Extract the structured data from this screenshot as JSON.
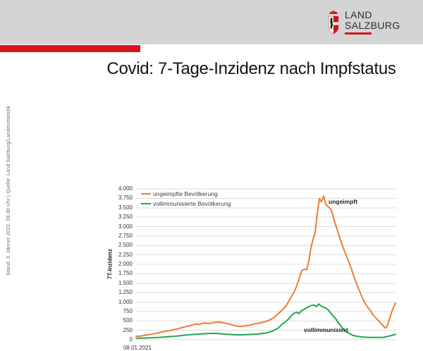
{
  "header": {
    "band_color": "#d4d4d4",
    "accent_bar_color": "#d8121a",
    "logo": {
      "line1": "LAND",
      "line2": "SALZBURG"
    }
  },
  "source_caption": "Stand: 3. Jänner 2022, 08.30 Uhr  |  Quelle: Land Salzburg/Landesstatistik",
  "page_title": "Covid: 7-Tage-Inzidenz nach Impfstatus",
  "chart_data": {
    "type": "line",
    "title": "Covid: 7-Tage-Inzidenz nach Impfstatus",
    "xlabel": "",
    "ylabel": "7T-Inzidenz",
    "x_start_label": "08.01.2021",
    "ylim": [
      0,
      4000
    ],
    "ytick_step": 250,
    "ytick_labels_bottom_up": [
      "0",
      "250",
      "500",
      "750",
      "1.000",
      "1.250",
      "1.500",
      "1.750",
      "2.000",
      "2.250",
      "2.500",
      "2.750",
      "3.000",
      "3.250",
      "3.500",
      "3.750",
      "4.000"
    ],
    "grid": true,
    "gridline_color": "#dcdcdc",
    "legend_position": "top-left",
    "annotations": [
      {
        "text": "ungeimpft"
      },
      {
        "text": "vollimmunisiert"
      }
    ],
    "series": [
      {
        "name": "ungeimpfte Bevölkerung",
        "color": "#ED7D31",
        "points": [
          [
            0,
            90
          ],
          [
            0.019,
            100
          ],
          [
            0.046,
            130
          ],
          [
            0.073,
            165
          ],
          [
            0.1,
            205
          ],
          [
            0.127,
            240
          ],
          [
            0.154,
            280
          ],
          [
            0.176,
            320
          ],
          [
            0.195,
            355
          ],
          [
            0.214,
            385
          ],
          [
            0.23,
            420
          ],
          [
            0.241,
            400
          ],
          [
            0.255,
            435
          ],
          [
            0.268,
            445
          ],
          [
            0.282,
            430
          ],
          [
            0.298,
            455
          ],
          [
            0.317,
            470
          ],
          [
            0.333,
            450
          ],
          [
            0.35,
            430
          ],
          [
            0.366,
            400
          ],
          [
            0.382,
            370
          ],
          [
            0.398,
            350
          ],
          [
            0.415,
            365
          ],
          [
            0.431,
            380
          ],
          [
            0.447,
            405
          ],
          [
            0.463,
            430
          ],
          [
            0.48,
            450
          ],
          [
            0.496,
            480
          ],
          [
            0.512,
            520
          ],
          [
            0.528,
            580
          ],
          [
            0.545,
            680
          ],
          [
            0.561,
            785
          ],
          [
            0.577,
            900
          ],
          [
            0.591,
            1070
          ],
          [
            0.604,
            1220
          ],
          [
            0.615,
            1380
          ],
          [
            0.626,
            1600
          ],
          [
            0.637,
            1840
          ],
          [
            0.648,
            1870
          ],
          [
            0.656,
            1860
          ],
          [
            0.664,
            2080
          ],
          [
            0.672,
            2430
          ],
          [
            0.68,
            2650
          ],
          [
            0.688,
            2840
          ],
          [
            0.696,
            3310
          ],
          [
            0.705,
            3740
          ],
          [
            0.713,
            3660
          ],
          [
            0.721,
            3810
          ],
          [
            0.729,
            3590
          ],
          [
            0.74,
            3520
          ],
          [
            0.751,
            3440
          ],
          [
            0.761,
            3180
          ],
          [
            0.772,
            2950
          ],
          [
            0.783,
            2700
          ],
          [
            0.794,
            2480
          ],
          [
            0.805,
            2290
          ],
          [
            0.816,
            2100
          ],
          [
            0.827,
            1890
          ],
          [
            0.837,
            1680
          ],
          [
            0.848,
            1480
          ],
          [
            0.859,
            1290
          ],
          [
            0.87,
            1110
          ],
          [
            0.881,
            960
          ],
          [
            0.892,
            850
          ],
          [
            0.902,
            760
          ],
          [
            0.913,
            640
          ],
          [
            0.924,
            560
          ],
          [
            0.935,
            490
          ],
          [
            0.94,
            440
          ],
          [
            0.949,
            380
          ],
          [
            0.957,
            310
          ],
          [
            0.962,
            330
          ],
          [
            0.97,
            450
          ],
          [
            0.978,
            640
          ],
          [
            0.986,
            800
          ],
          [
            0.997,
            970
          ]
        ]
      },
      {
        "name": "vollimmunisierte Bevölkerung",
        "color": "#1FA750",
        "points": [
          [
            0,
            40
          ],
          [
            0.033,
            45
          ],
          [
            0.06,
            50
          ],
          [
            0.087,
            60
          ],
          [
            0.114,
            75
          ],
          [
            0.141,
            90
          ],
          [
            0.168,
            105
          ],
          [
            0.195,
            125
          ],
          [
            0.222,
            140
          ],
          [
            0.249,
            155
          ],
          [
            0.276,
            165
          ],
          [
            0.304,
            170
          ],
          [
            0.331,
            155
          ],
          [
            0.358,
            140
          ],
          [
            0.385,
            130
          ],
          [
            0.412,
            130
          ],
          [
            0.439,
            140
          ],
          [
            0.466,
            150
          ],
          [
            0.493,
            170
          ],
          [
            0.512,
            200
          ],
          [
            0.531,
            250
          ],
          [
            0.547,
            310
          ],
          [
            0.561,
            410
          ],
          [
            0.575,
            480
          ],
          [
            0.588,
            560
          ],
          [
            0.599,
            660
          ],
          [
            0.61,
            710
          ],
          [
            0.618,
            730
          ],
          [
            0.626,
            690
          ],
          [
            0.634,
            760
          ],
          [
            0.642,
            790
          ],
          [
            0.653,
            840
          ],
          [
            0.664,
            880
          ],
          [
            0.675,
            910
          ],
          [
            0.686,
            915
          ],
          [
            0.694,
            880
          ],
          [
            0.702,
            950
          ],
          [
            0.71,
            900
          ],
          [
            0.718,
            870
          ],
          [
            0.726,
            850
          ],
          [
            0.734,
            820
          ],
          [
            0.745,
            740
          ],
          [
            0.756,
            640
          ],
          [
            0.767,
            560
          ],
          [
            0.778,
            450
          ],
          [
            0.789,
            350
          ],
          [
            0.799,
            270
          ],
          [
            0.81,
            200
          ],
          [
            0.821,
            160
          ],
          [
            0.832,
            120
          ],
          [
            0.846,
            95
          ],
          [
            0.859,
            80
          ],
          [
            0.873,
            70
          ],
          [
            0.886,
            65
          ],
          [
            0.9,
            60
          ],
          [
            0.913,
            60
          ],
          [
            0.927,
            60
          ],
          [
            0.94,
            60
          ],
          [
            0.954,
            65
          ],
          [
            0.967,
            90
          ],
          [
            0.981,
            110
          ],
          [
            0.997,
            140
          ]
        ]
      }
    ]
  }
}
